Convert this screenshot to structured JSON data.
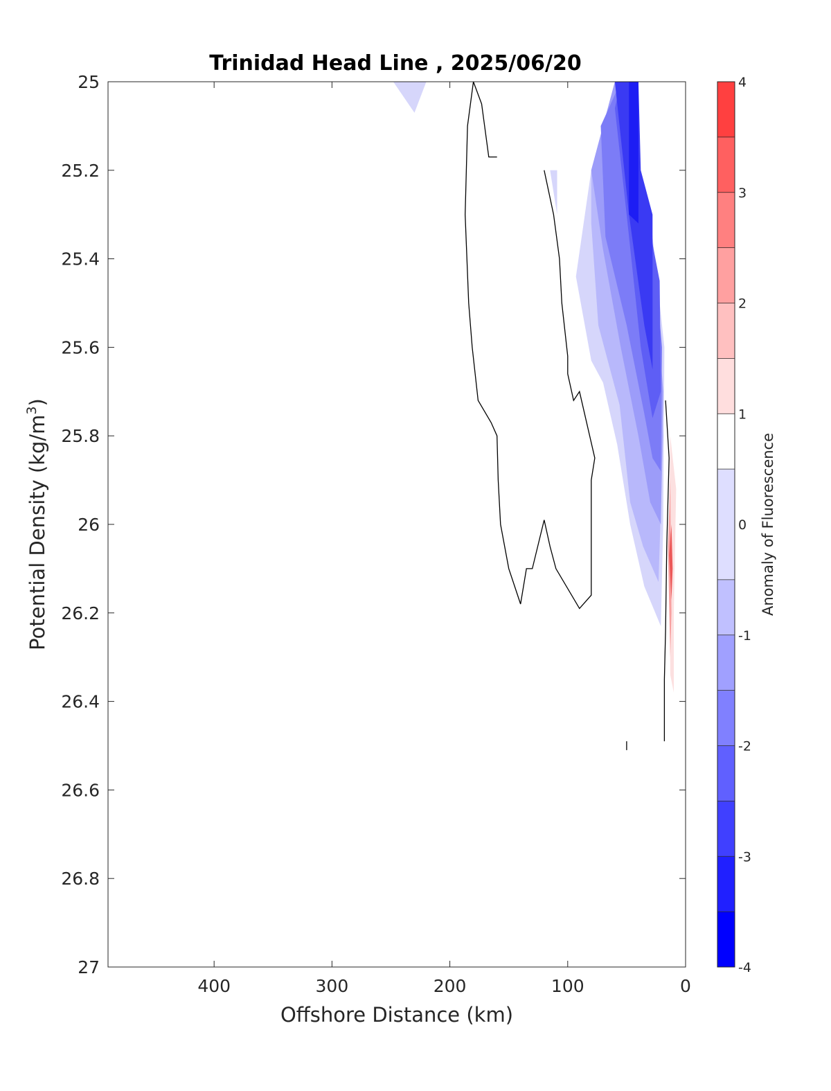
{
  "chart_data": {
    "type": "contour",
    "title": "Trinidad Head Line , 2025/06/20",
    "xlabel": "Offshore Distance (km)",
    "ylabel_main": "Potential Density (kg/m",
    "ylabel_sup": "3",
    "ylabel_close": ")",
    "colorbar_label": "Anomaly of Fluorescence",
    "x_reversed": true,
    "xlim": [
      0,
      490
    ],
    "ylim": [
      25,
      27
    ],
    "y_reversed": true,
    "xticks": [
      400,
      300,
      200,
      100,
      0
    ],
    "xtick_labels": [
      "400",
      "300",
      "200",
      "100",
      "0"
    ],
    "yticks": [
      25,
      25.2,
      25.4,
      25.6,
      25.8,
      26,
      26.2,
      26.4,
      26.6,
      26.8,
      27
    ],
    "ytick_labels": [
      "25",
      "25.2",
      "25.4",
      "25.6",
      "25.8",
      "26",
      "26.2",
      "26.4",
      "26.6",
      "26.8",
      "27"
    ],
    "colorbar": {
      "range": [
        -4,
        4
      ],
      "ticks": [
        -4,
        -3,
        -2,
        -1,
        0,
        1,
        2,
        3,
        4
      ],
      "tick_labels": [
        "-4",
        "-3",
        "-2",
        "-1",
        "0",
        "1",
        "2",
        "3",
        "4"
      ],
      "levels": [
        -4,
        -3.5,
        -3,
        -2.5,
        -2,
        -1.5,
        -1,
        -0.5,
        0.5,
        1,
        1.5,
        2,
        2.5,
        3,
        3.5,
        4
      ],
      "colors": [
        "#0000ff",
        "#2020ff",
        "#4040ff",
        "#6060ff",
        "#8080ff",
        "#a0a0ff",
        "#c0c0ff",
        "#dedeff",
        "#ffffff",
        "#ffdede",
        "#ffc0c0",
        "#ffa0a0",
        "#ff8080",
        "#ff6060",
        "#ff4040",
        "#ff2020"
      ]
    },
    "filled_regions": [
      {
        "level": -0.75,
        "color": "#d6d6fb",
        "points": [
          [
            248,
            25
          ],
          [
            220,
            25
          ],
          [
            230,
            25.07
          ]
        ]
      },
      {
        "level": -0.75,
        "color": "#d6d6fb",
        "points": [
          [
            115,
            25.2
          ],
          [
            109,
            25.2
          ],
          [
            109,
            25.3
          ]
        ]
      },
      {
        "level": -0.75,
        "color": "#d6d6fb",
        "points": [
          [
            80,
            25.2
          ],
          [
            93,
            25.44
          ],
          [
            80,
            25.63
          ],
          [
            70,
            25.68
          ],
          [
            58,
            25.82
          ],
          [
            47,
            26.0
          ],
          [
            35,
            26.14
          ],
          [
            21,
            26.23
          ],
          [
            19,
            26.0
          ],
          [
            18,
            25.6
          ],
          [
            30,
            25.3
          ],
          [
            58,
            25.05
          ],
          [
            60,
            25
          ]
        ]
      },
      {
        "level": -1.25,
        "color": "#b8b8fb",
        "points": [
          [
            80,
            25.2
          ],
          [
            80,
            25.32
          ],
          [
            74,
            25.55
          ],
          [
            56,
            25.73
          ],
          [
            47,
            25.95
          ],
          [
            36,
            26.05
          ],
          [
            23,
            26.13
          ],
          [
            19,
            25.8
          ],
          [
            30,
            25.3
          ],
          [
            60,
            25
          ]
        ]
      },
      {
        "level": -1.75,
        "color": "#9c9cf9",
        "points": [
          [
            80,
            25.2
          ],
          [
            70,
            25.38
          ],
          [
            55,
            25.6
          ],
          [
            40,
            25.8
          ],
          [
            30,
            25.95
          ],
          [
            21,
            26.0
          ],
          [
            19,
            25.7
          ],
          [
            30,
            25.3
          ],
          [
            60,
            25
          ]
        ]
      },
      {
        "level": -2.25,
        "color": "#7c7cf7",
        "points": [
          [
            72,
            25.1
          ],
          [
            68,
            25.35
          ],
          [
            50,
            25.55
          ],
          [
            35,
            25.75
          ],
          [
            28,
            25.85
          ],
          [
            21,
            25.88
          ],
          [
            20,
            25.6
          ],
          [
            30,
            25.3
          ],
          [
            55,
            25
          ]
        ]
      },
      {
        "level": -2.75,
        "color": "#5e5ef5",
        "points": [
          [
            60,
            25.06
          ],
          [
            50,
            25.3
          ],
          [
            38,
            25.6
          ],
          [
            28,
            25.76
          ],
          [
            21,
            25.7
          ],
          [
            22,
            25.45
          ],
          [
            40,
            25.2
          ],
          [
            55,
            25
          ]
        ]
      },
      {
        "level": -3.25,
        "color": "#3a3af3",
        "points": [
          [
            60,
            25
          ],
          [
            48,
            25.3
          ],
          [
            35,
            25.55
          ],
          [
            28,
            25.65
          ],
          [
            28,
            25.3
          ],
          [
            38,
            25.2
          ],
          [
            40,
            25
          ]
        ]
      },
      {
        "level": -3.75,
        "color": "#1d1df4",
        "points": [
          [
            48,
            25
          ],
          [
            48,
            25.3
          ],
          [
            40,
            25.32
          ],
          [
            40,
            25.0
          ]
        ]
      },
      {
        "level": 0.75,
        "color": "#fce0e0",
        "points": [
          [
            13,
            25.8
          ],
          [
            8,
            25.92
          ],
          [
            10,
            26.2
          ],
          [
            10,
            26.38
          ],
          [
            13,
            26.34
          ],
          [
            14,
            26.0
          ]
        ]
      },
      {
        "level": 1.5,
        "color": "#f8a0a0",
        "points": [
          [
            13,
            25.9
          ],
          [
            12,
            26.2
          ],
          [
            13,
            26.3
          ],
          [
            15,
            26.05
          ]
        ]
      },
      {
        "level": 2.5,
        "color": "#ec5858",
        "points": [
          [
            12,
            26.0
          ],
          [
            11,
            26.1
          ],
          [
            12,
            26.17
          ],
          [
            14,
            26.07
          ]
        ]
      }
    ],
    "contour_lines": [
      {
        "level": 0,
        "points": [
          [
            160,
            25.17
          ],
          [
            167,
            25.17
          ],
          [
            173,
            25.05
          ],
          [
            180,
            25
          ],
          [
            185,
            25.1
          ],
          [
            187,
            25.3
          ],
          [
            184,
            25.5
          ],
          [
            181,
            25.6
          ],
          [
            176,
            25.72
          ],
          [
            165,
            25.77
          ],
          [
            160,
            25.8
          ],
          [
            159,
            25.9
          ],
          [
            157,
            26.0
          ],
          [
            150,
            26.1
          ],
          [
            140,
            26.18
          ],
          [
            135,
            26.1
          ],
          [
            130,
            26.1
          ],
          [
            120,
            25.99
          ],
          [
            115,
            26.05
          ],
          [
            110,
            26.1
          ],
          [
            90,
            26.19
          ],
          [
            80,
            26.16
          ],
          [
            80,
            26.1
          ],
          [
            80,
            25.9
          ],
          [
            77,
            25.85
          ],
          [
            90,
            25.7
          ],
          [
            95,
            25.72
          ],
          [
            100,
            25.66
          ],
          [
            100,
            25.62
          ],
          [
            105,
            25.5
          ],
          [
            107,
            25.4
          ],
          [
            112,
            25.3
          ],
          [
            120,
            25.2
          ]
        ]
      },
      {
        "level": 0,
        "points": [
          [
            17,
            25.72
          ],
          [
            14,
            25.85
          ],
          [
            16,
            26.05
          ],
          [
            17,
            26.24
          ],
          [
            18,
            26.35
          ],
          [
            18,
            26.49
          ]
        ]
      },
      {
        "level": 0,
        "points": [
          [
            50,
            26.49
          ],
          [
            50,
            26.51
          ]
        ]
      }
    ]
  }
}
